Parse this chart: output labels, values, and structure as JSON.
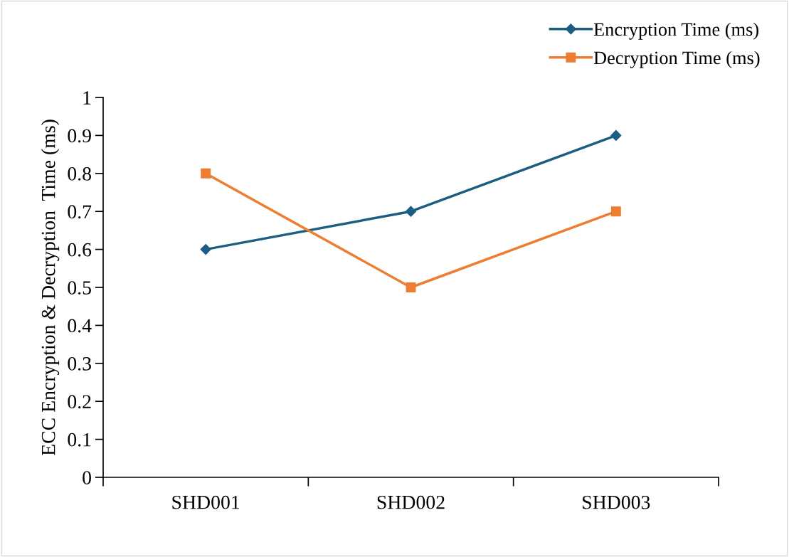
{
  "chart_data": {
    "type": "line",
    "ylabel": "ECC Encryption & Decryption  Time (ms)",
    "categories": [
      "SHD001",
      "SHD002",
      "SHD003"
    ],
    "series": [
      {
        "name": "Encryption Time (ms)",
        "color": "#1b5e82",
        "marker": "diamond",
        "values": [
          0.6,
          0.7,
          0.9
        ]
      },
      {
        "name": "Decryption Time (ms)",
        "color": "#ed7d31",
        "marker": "square",
        "values": [
          0.8,
          0.5,
          0.7
        ]
      }
    ],
    "ylim": [
      0,
      1
    ],
    "yticks": [
      0,
      0.1,
      0.2,
      0.3,
      0.4,
      0.5,
      0.6,
      0.7,
      0.8,
      0.9,
      1
    ],
    "grid": false,
    "legend": "top right",
    "line_style": "solid"
  }
}
